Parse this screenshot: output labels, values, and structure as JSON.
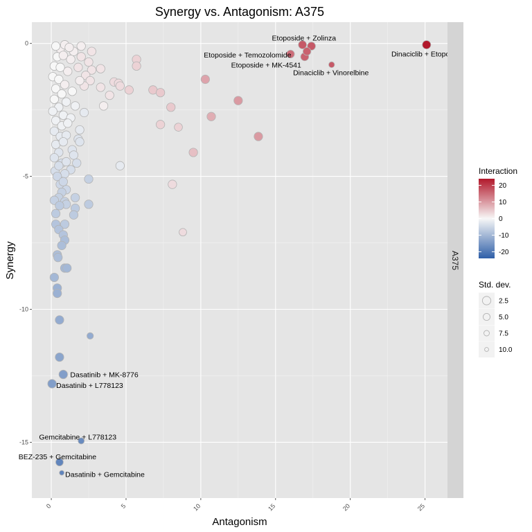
{
  "chart_data": {
    "type": "scatter",
    "title": "Synergy vs. Antagonism:  A375",
    "xlabel": "Antagonism",
    "ylabel": "Synergy",
    "facet_label": "A375",
    "xlim": [
      -1.3,
      26.5
    ],
    "ylim": [
      -17.1,
      0.8
    ],
    "x_ticks": [
      0,
      5,
      10,
      15,
      20,
      25
    ],
    "y_ticks": [
      0,
      -5,
      -10,
      -15
    ],
    "grid": true,
    "color_legend": {
      "title": "Interaction",
      "ticks": [
        20,
        10,
        0,
        -10,
        -20
      ],
      "range": [
        -24,
        24
      ],
      "low_color": "#2f5fa8",
      "mid_color": "#f7f7f7",
      "high_color": "#b2182b"
    },
    "size_legend": {
      "title": "Std. dev.",
      "values": [
        2.5,
        5.0,
        7.5,
        10.0
      ]
    },
    "annotations": [
      {
        "text": "Etoposide + Zolinza",
        "x": 16.9,
        "y": -0.05
      },
      {
        "text": "Etoposide + Temozolomide",
        "x": 16.05,
        "y": -0.45
      },
      {
        "text": "Dinaciclib + Etoposide",
        "x": 25.1,
        "y": -0.1
      },
      {
        "text": "Etoposide + MK-4541",
        "x": 16.95,
        "y": -0.6
      },
      {
        "text": "Dinaciclib + Vinorelbine",
        "x": 18.75,
        "y": -0.8
      },
      {
        "text": "Dasatinib + MK-8776",
        "x": 0.85,
        "y": -12.45
      },
      {
        "text": "Dasatinib + L778123",
        "x": 0.05,
        "y": -12.85
      },
      {
        "text": "Gemcitabine + L778123",
        "x": 2.0,
        "y": -15.05
      },
      {
        "text": "BEZ-235 + Gemcitabine",
        "x": 0.55,
        "y": -15.85
      },
      {
        "text": "Dasatinib + Gemcitabine",
        "x": 0.7,
        "y": -16.2
      }
    ],
    "points": [
      {
        "x": 25.1,
        "y": -0.05,
        "i": 24,
        "s": 4.8
      },
      {
        "x": 16.8,
        "y": -0.05,
        "i": 17,
        "s": 5.2
      },
      {
        "x": 17.4,
        "y": -0.1,
        "i": 17,
        "s": 5.2
      },
      {
        "x": 17.1,
        "y": -0.3,
        "i": 16,
        "s": 5.5
      },
      {
        "x": 16.0,
        "y": -0.4,
        "i": 15,
        "s": 5.5
      },
      {
        "x": 16.95,
        "y": -0.5,
        "i": 16,
        "s": 5.3
      },
      {
        "x": 18.75,
        "y": -0.8,
        "i": 17,
        "s": 8.5
      },
      {
        "x": 5.7,
        "y": -0.6,
        "i": 4,
        "s": 4.5
      },
      {
        "x": 5.7,
        "y": -0.85,
        "i": 4,
        "s": 4.5
      },
      {
        "x": 10.3,
        "y": -1.35,
        "i": 9,
        "s": 4.5
      },
      {
        "x": 4.2,
        "y": -1.45,
        "i": 3,
        "s": 4.5
      },
      {
        "x": 4.5,
        "y": -1.5,
        "i": 3,
        "s": 4.5
      },
      {
        "x": 4.6,
        "y": -1.6,
        "i": 3,
        "s": 4.5
      },
      {
        "x": 5.2,
        "y": -1.75,
        "i": 4,
        "s": 4.5
      },
      {
        "x": 6.8,
        "y": -1.75,
        "i": 5,
        "s": 4.5
      },
      {
        "x": 7.3,
        "y": -1.85,
        "i": 5,
        "s": 4.5
      },
      {
        "x": 3.3,
        "y": -1.65,
        "i": 2,
        "s": 4.5
      },
      {
        "x": 3.9,
        "y": -1.95,
        "i": 2,
        "s": 4.5
      },
      {
        "x": 12.5,
        "y": -2.15,
        "i": 10,
        "s": 4.5
      },
      {
        "x": 3.5,
        "y": -2.35,
        "i": 1,
        "s": 4.5
      },
      {
        "x": 8.0,
        "y": -2.4,
        "i": 5,
        "s": 4.5
      },
      {
        "x": 10.7,
        "y": -2.75,
        "i": 8,
        "s": 4.5
      },
      {
        "x": 7.3,
        "y": -3.05,
        "i": 4,
        "s": 4.5
      },
      {
        "x": 8.5,
        "y": -3.15,
        "i": 4,
        "s": 5.2
      },
      {
        "x": 13.85,
        "y": -3.5,
        "i": 10,
        "s": 4.5
      },
      {
        "x": 9.5,
        "y": -4.1,
        "i": 6,
        "s": 4.5
      },
      {
        "x": 8.1,
        "y": -5.3,
        "i": 3,
        "s": 4.5
      },
      {
        "x": 8.8,
        "y": -7.1,
        "i": 3,
        "s": 6.0
      },
      {
        "x": 4.6,
        "y": -4.6,
        "i": -2,
        "s": 4.5
      },
      {
        "x": 2.0,
        "y": -0.1,
        "i": 1,
        "s": 4.5
      },
      {
        "x": 2.7,
        "y": -0.3,
        "i": 2,
        "s": 4.5
      },
      {
        "x": 2.0,
        "y": -0.5,
        "i": 2,
        "s": 4.5
      },
      {
        "x": 2.5,
        "y": -0.7,
        "i": 2,
        "s": 4.5
      },
      {
        "x": 2.7,
        "y": -1.0,
        "i": 2,
        "s": 4.5
      },
      {
        "x": 3.3,
        "y": -0.95,
        "i": 2,
        "s": 4.5
      },
      {
        "x": 2.3,
        "y": -1.2,
        "i": 2,
        "s": 4.5
      },
      {
        "x": 2.6,
        "y": -1.4,
        "i": 2,
        "s": 4.5
      },
      {
        "x": 2.2,
        "y": -1.6,
        "i": 2,
        "s": 4.5
      },
      {
        "x": 1.5,
        "y": -0.3,
        "i": 1,
        "s": 4.5
      },
      {
        "x": 1.8,
        "y": -0.9,
        "i": 2,
        "s": 4.5
      },
      {
        "x": 1.9,
        "y": -1.4,
        "i": 1,
        "s": 4.5
      },
      {
        "x": 1.3,
        "y": -0.6,
        "i": 1,
        "s": 4.5
      },
      {
        "x": 1.1,
        "y": -1.05,
        "i": 1,
        "s": 4.5
      },
      {
        "x": 0.6,
        "y": -0.2,
        "i": 1,
        "s": 4.5
      },
      {
        "x": 0.9,
        "y": -0.05,
        "i": 1,
        "s": 4.5
      },
      {
        "x": 0.3,
        "y": -0.1,
        "i": 0,
        "s": 4.5
      },
      {
        "x": 1.2,
        "y": -0.15,
        "i": 1,
        "s": 4.5
      },
      {
        "x": 0.4,
        "y": -0.5,
        "i": 0,
        "s": 4.5
      },
      {
        "x": 0.8,
        "y": -0.45,
        "i": 1,
        "s": 4.5
      },
      {
        "x": 0.2,
        "y": -0.85,
        "i": 0,
        "s": 4.5
      },
      {
        "x": 0.6,
        "y": -0.9,
        "i": 0,
        "s": 4.5
      },
      {
        "x": 0.1,
        "y": -1.25,
        "i": 0,
        "s": 4.5
      },
      {
        "x": 0.5,
        "y": -1.35,
        "i": 0,
        "s": 4.5
      },
      {
        "x": 0.9,
        "y": -1.55,
        "i": 1,
        "s": 4.5
      },
      {
        "x": 0.3,
        "y": -1.7,
        "i": 0,
        "s": 4.5
      },
      {
        "x": 0.7,
        "y": -1.9,
        "i": 0,
        "s": 4.5
      },
      {
        "x": 1.4,
        "y": -1.8,
        "i": 0,
        "s": 4.5
      },
      {
        "x": 0.2,
        "y": -2.1,
        "i": 0,
        "s": 4.5
      },
      {
        "x": 1.0,
        "y": -2.2,
        "i": -1,
        "s": 4.5
      },
      {
        "x": 0.5,
        "y": -2.4,
        "i": -1,
        "s": 4.5
      },
      {
        "x": 1.6,
        "y": -2.35,
        "i": -1,
        "s": 4.5
      },
      {
        "x": 2.2,
        "y": -2.6,
        "i": -2,
        "s": 4.5
      },
      {
        "x": 0.1,
        "y": -2.55,
        "i": -1,
        "s": 4.5
      },
      {
        "x": 0.8,
        "y": -2.7,
        "i": -1,
        "s": 4.5
      },
      {
        "x": 1.3,
        "y": -2.8,
        "i": -1,
        "s": 4.5
      },
      {
        "x": 0.3,
        "y": -2.9,
        "i": -1,
        "s": 4.5
      },
      {
        "x": 0.7,
        "y": -3.1,
        "i": -1,
        "s": 4.5
      },
      {
        "x": 1.1,
        "y": -3.0,
        "i": -1,
        "s": 4.5
      },
      {
        "x": 0.2,
        "y": -3.3,
        "i": -2,
        "s": 4.5
      },
      {
        "x": 1.9,
        "y": -3.25,
        "i": -2,
        "s": 4.5
      },
      {
        "x": 0.6,
        "y": -3.5,
        "i": -2,
        "s": 4.5
      },
      {
        "x": 1.0,
        "y": -3.45,
        "i": -2,
        "s": 4.5
      },
      {
        "x": 0.3,
        "y": -3.8,
        "i": -2,
        "s": 4.5
      },
      {
        "x": 0.8,
        "y": -3.7,
        "i": -2,
        "s": 4.5
      },
      {
        "x": 1.8,
        "y": -3.6,
        "i": -3,
        "s": 4.5
      },
      {
        "x": 1.9,
        "y": -3.7,
        "i": -3,
        "s": 4.5
      },
      {
        "x": 1.4,
        "y": -4.0,
        "i": -3,
        "s": 4.5
      },
      {
        "x": 0.5,
        "y": -4.1,
        "i": -3,
        "s": 4.5
      },
      {
        "x": 1.5,
        "y": -4.2,
        "i": -3,
        "s": 4.5
      },
      {
        "x": 0.2,
        "y": -4.3,
        "i": -3,
        "s": 4.5
      },
      {
        "x": 0.7,
        "y": -4.5,
        "i": -4,
        "s": 4.5
      },
      {
        "x": 1.0,
        "y": -4.45,
        "i": -3,
        "s": 4.5
      },
      {
        "x": 1.7,
        "y": -4.5,
        "i": -4,
        "s": 4.5
      },
      {
        "x": 0.25,
        "y": -4.8,
        "i": -4,
        "s": 4.5
      },
      {
        "x": 0.5,
        "y": -4.6,
        "i": -4,
        "s": 4.5
      },
      {
        "x": 1.3,
        "y": -4.75,
        "i": -4,
        "s": 4.5
      },
      {
        "x": 0.9,
        "y": -4.9,
        "i": -4,
        "s": 4.5
      },
      {
        "x": 0.4,
        "y": -5.0,
        "i": -5,
        "s": 4.5
      },
      {
        "x": 0.6,
        "y": -5.3,
        "i": -5,
        "s": 4.5
      },
      {
        "x": 0.8,
        "y": -5.2,
        "i": -5,
        "s": 4.5
      },
      {
        "x": 2.5,
        "y": -5.1,
        "i": -6,
        "s": 4.5
      },
      {
        "x": 1.0,
        "y": -5.5,
        "i": -5,
        "s": 4.5
      },
      {
        "x": 0.7,
        "y": -5.6,
        "i": -6,
        "s": 4.5
      },
      {
        "x": 0.5,
        "y": -5.8,
        "i": -6,
        "s": 4.5
      },
      {
        "x": 1.6,
        "y": -5.8,
        "i": -6,
        "s": 4.5
      },
      {
        "x": 0.2,
        "y": -5.9,
        "i": -6,
        "s": 4.5
      },
      {
        "x": 0.9,
        "y": -5.95,
        "i": -6,
        "s": 4.5
      },
      {
        "x": 1.0,
        "y": -6.05,
        "i": -6,
        "s": 4.5
      },
      {
        "x": 0.55,
        "y": -6.1,
        "i": -7,
        "s": 4.5
      },
      {
        "x": 1.6,
        "y": -6.2,
        "i": -7,
        "s": 4.5
      },
      {
        "x": 2.5,
        "y": -6.05,
        "i": -7,
        "s": 4.5
      },
      {
        "x": 0.3,
        "y": -6.4,
        "i": -7,
        "s": 4.5
      },
      {
        "x": 1.5,
        "y": -6.45,
        "i": -7,
        "s": 4.5
      },
      {
        "x": 0.9,
        "y": -6.8,
        "i": -7,
        "s": 4.5
      },
      {
        "x": 0.3,
        "y": -6.8,
        "i": -8,
        "s": 4.5
      },
      {
        "x": 0.5,
        "y": -7.0,
        "i": -8,
        "s": 4.5
      },
      {
        "x": 0.8,
        "y": -7.2,
        "i": -8,
        "s": 4.5
      },
      {
        "x": 0.9,
        "y": -7.4,
        "i": -9,
        "s": 4.5
      },
      {
        "x": 0.7,
        "y": -7.6,
        "i": -9,
        "s": 4.5
      },
      {
        "x": 0.4,
        "y": -7.95,
        "i": -9,
        "s": 4.5
      },
      {
        "x": 0.45,
        "y": -8.05,
        "i": -9,
        "s": 4.5
      },
      {
        "x": 0.9,
        "y": -8.45,
        "i": -10,
        "s": 4.5
      },
      {
        "x": 1.05,
        "y": -8.45,
        "i": -10,
        "s": 4.5
      },
      {
        "x": 0.2,
        "y": -8.8,
        "i": -10,
        "s": 4.5
      },
      {
        "x": 0.4,
        "y": -9.2,
        "i": -11,
        "s": 4.5
      },
      {
        "x": 0.4,
        "y": -9.4,
        "i": -11,
        "s": 4.5
      },
      {
        "x": 0.55,
        "y": -10.4,
        "i": -12,
        "s": 4.5
      },
      {
        "x": 2.6,
        "y": -11.0,
        "i": -12,
        "s": 7.5
      },
      {
        "x": 0.55,
        "y": -11.8,
        "i": -13,
        "s": 4.5
      },
      {
        "x": 0.8,
        "y": -12.45,
        "i": -14,
        "s": 4.5
      },
      {
        "x": 0.05,
        "y": -12.8,
        "i": -14,
        "s": 4.5
      },
      {
        "x": 2.0,
        "y": -14.95,
        "i": -17,
        "s": 8.0
      },
      {
        "x": 0.55,
        "y": -15.75,
        "i": -18,
        "s": 6.0
      },
      {
        "x": 0.7,
        "y": -16.15,
        "i": -18,
        "s": 10.0
      }
    ]
  }
}
